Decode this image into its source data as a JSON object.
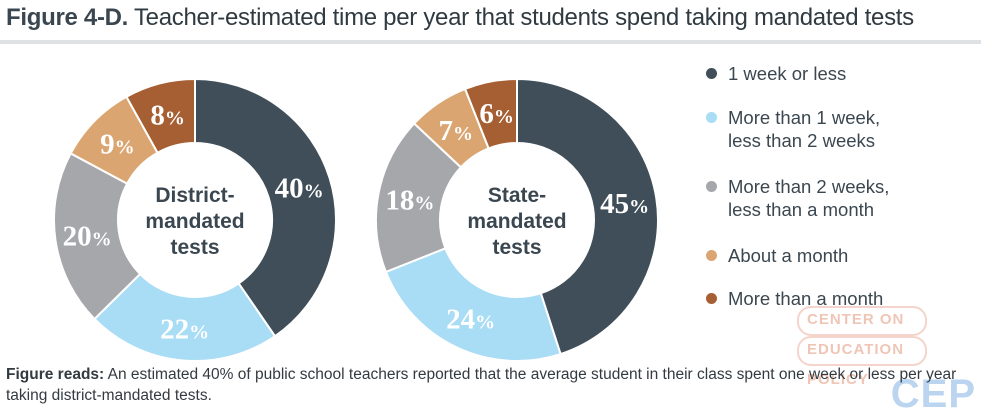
{
  "title": {
    "label": "Figure 4-D.",
    "text": "Teacher-estimated time per year that students spend taking mandated tests"
  },
  "chart_data": [
    {
      "type": "pie",
      "title": "District-mandated tests",
      "center_lines": [
        "District-",
        "mandated",
        "tests"
      ],
      "categories": [
        "1 week or less",
        "More than 1 week, less than 2 weeks",
        "More than 2 weeks, less than a month",
        "About a month",
        "More than a month"
      ],
      "values": [
        40,
        22,
        20,
        9,
        8
      ],
      "labels": [
        "40%",
        "22%",
        "20%",
        "9%",
        "8%"
      ]
    },
    {
      "type": "pie",
      "title": "State-mandated tests",
      "center_lines": [
        "State-",
        "mandated",
        "tests"
      ],
      "categories": [
        "1 week or less",
        "More than 1 week, less than 2 weeks",
        "More than 2 weeks, less than a month",
        "About a month",
        "More than a month"
      ],
      "values": [
        45,
        24,
        18,
        7,
        6
      ],
      "labels": [
        "45%",
        "24%",
        "18%",
        "7%",
        "6%"
      ]
    }
  ],
  "colors": [
    "#3f4e58",
    "#a9dcf5",
    "#a6a7ab",
    "#dba571",
    "#a65f33"
  ],
  "legend": [
    {
      "lines": [
        "1 week or less"
      ]
    },
    {
      "lines": [
        "More than 1 week,",
        "less than 2 weeks"
      ]
    },
    {
      "lines": [
        "More than 2 weeks,",
        "less than a month"
      ]
    },
    {
      "lines": [
        "About a month"
      ]
    },
    {
      "lines": [
        "More than a month"
      ]
    }
  ],
  "note": {
    "lead": "Figure reads:",
    "text": "An estimated 40% of public school teachers reported that the average student in their class spent one week or less per year taking district-mandated tests."
  },
  "watermark": {
    "lines": [
      "CENTER ON",
      "EDUCATION",
      "POLICY"
    ],
    "logo": "CEP"
  }
}
